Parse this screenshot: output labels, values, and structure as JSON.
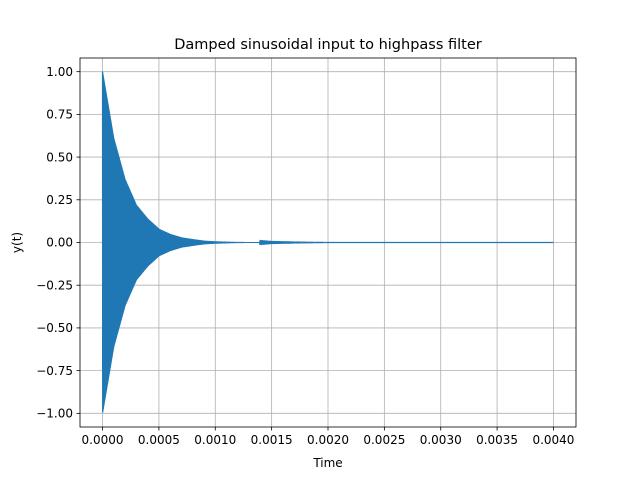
{
  "chart_data": {
    "type": "line",
    "title": "Damped sinusoidal input to highpass filter",
    "xlabel": "Time",
    "ylabel": "y(t)",
    "xlim": [
      -0.0002,
      0.0042
    ],
    "ylim": [
      -1.08,
      1.08
    ],
    "grid": true,
    "x_ticks": [
      0.0,
      0.0005,
      0.001,
      0.0015,
      0.002,
      0.0025,
      0.003,
      0.0035,
      0.004
    ],
    "x_tick_labels": [
      "0.0000",
      "0.0005",
      "0.0010",
      "0.0015",
      "0.0020",
      "0.0025",
      "0.0030",
      "0.0035",
      "0.0040"
    ],
    "y_ticks": [
      -1.0,
      -0.75,
      -0.5,
      -0.25,
      0.0,
      0.25,
      0.5,
      0.75,
      1.0
    ],
    "y_tick_labels": [
      "−1.00",
      "−0.75",
      "−0.50",
      "−0.25",
      "0.00",
      "0.25",
      "0.50",
      "0.75",
      "1.00"
    ],
    "series": [
      {
        "color": "#1f77b4",
        "envelope": {
          "t": [
            0.0,
            0.0001,
            0.0002,
            0.0003,
            0.0004,
            0.0005,
            0.0006,
            0.0007,
            0.0008,
            0.0009,
            0.001,
            0.0012,
            0.0015,
            0.002,
            0.003,
            0.004
          ],
          "amplitude": [
            1.0,
            0.61,
            0.37,
            0.22,
            0.14,
            0.08,
            0.05,
            0.03,
            0.02,
            0.011,
            0.007,
            0.003,
            0.001,
            0.0,
            0.0,
            0.0
          ]
        }
      }
    ]
  }
}
